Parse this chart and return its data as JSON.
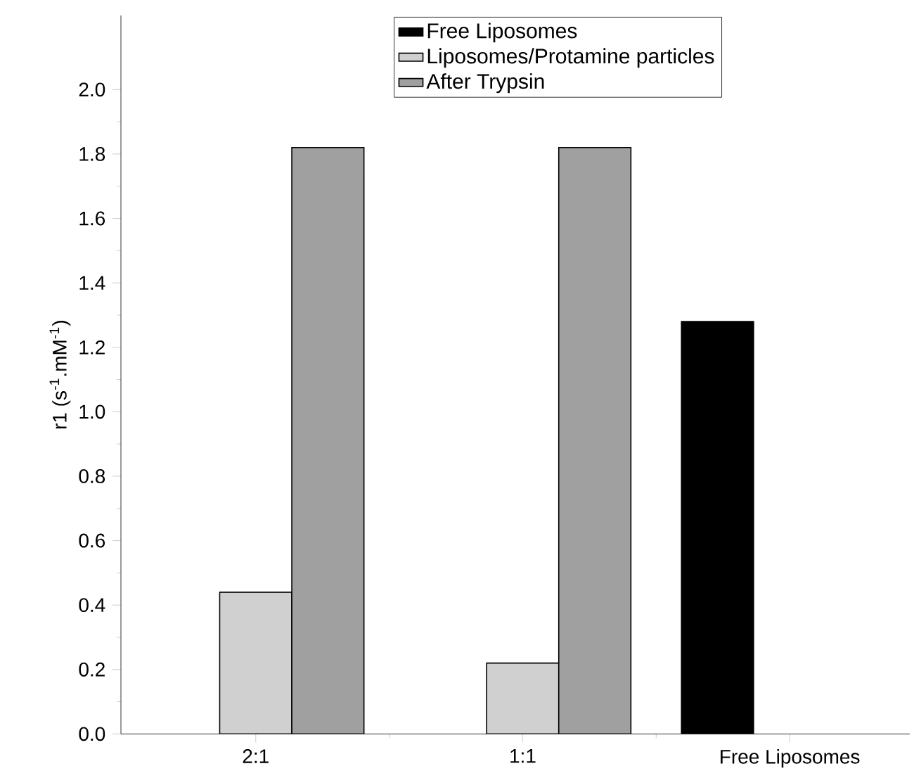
{
  "chart_data": {
    "type": "bar",
    "ylabel": "r1 (s$^{-1}$.mM$^{-1}$)",
    "categories": [
      "2:1",
      "1:1",
      "Free Liposomes"
    ],
    "series": [
      {
        "name": "Free Liposomes",
        "color": "#000000",
        "values": [
          null,
          null,
          1.28
        ]
      },
      {
        "name": "Liposomes/Protamine particles",
        "color": "#d0d0d0",
        "values": [
          0.44,
          0.22,
          null
        ]
      },
      {
        "name": "After Trypsin",
        "color": "#a0a0a0",
        "values": [
          1.82,
          1.82,
          null
        ]
      }
    ],
    "ylim": [
      0,
      2.23
    ],
    "yticks": [
      {
        "value": 0,
        "label": "0.0"
      },
      {
        "value": 0.2,
        "label": "0.2"
      },
      {
        "value": 0.4,
        "label": "0.4"
      },
      {
        "value": 0.6,
        "label": "0.6"
      },
      {
        "value": 0.8,
        "label": "0.8"
      },
      {
        "value": 1.0,
        "label": "1.0"
      },
      {
        "value": 1.2,
        "label": "1.2"
      },
      {
        "value": 1.4,
        "label": "1.4"
      },
      {
        "value": 1.6,
        "label": "1.6"
      },
      {
        "value": 1.8,
        "label": "1.8"
      },
      {
        "value": 2.0,
        "label": "2.0"
      }
    ],
    "grid": false,
    "legend": "top"
  }
}
